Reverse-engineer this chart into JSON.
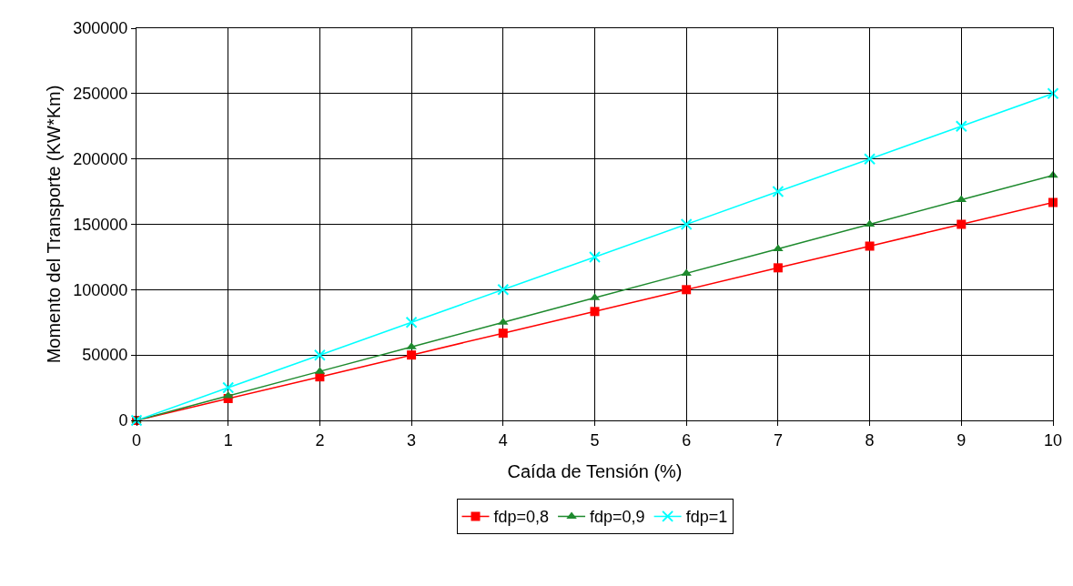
{
  "chart_data": {
    "type": "line",
    "xlabel": "Caída de Tensión (%)",
    "ylabel": "Momento del Transporte (KW*Km)",
    "x": [
      0,
      1,
      2,
      3,
      4,
      5,
      6,
      7,
      8,
      9,
      10
    ],
    "series": [
      {
        "name": "fdp=0,8",
        "color": "#ff0000",
        "marker": "square",
        "values": [
          0,
          16700,
          33300,
          50000,
          66700,
          83300,
          100000,
          116700,
          133300,
          150000,
          166700
        ]
      },
      {
        "name": "fdp=0,9",
        "color": "#1e8a2e",
        "marker": "triangle",
        "values": [
          0,
          18750,
          37500,
          56250,
          75000,
          93750,
          112500,
          131250,
          150000,
          168750,
          187500
        ]
      },
      {
        "name": "fdp=1",
        "color": "#00ffff",
        "marker": "cross",
        "values": [
          0,
          25000,
          50000,
          75000,
          100000,
          125000,
          150000,
          175000,
          200000,
          225000,
          250000
        ]
      }
    ],
    "xlim": [
      0,
      10
    ],
    "xticks": [
      0,
      1,
      2,
      3,
      4,
      5,
      6,
      7,
      8,
      9,
      10
    ],
    "ylim": [
      0,
      300000
    ],
    "yticks": [
      0,
      50000,
      100000,
      150000,
      200000,
      250000,
      300000
    ],
    "grid": true,
    "legend": "bottom",
    "line_style": "solid"
  }
}
